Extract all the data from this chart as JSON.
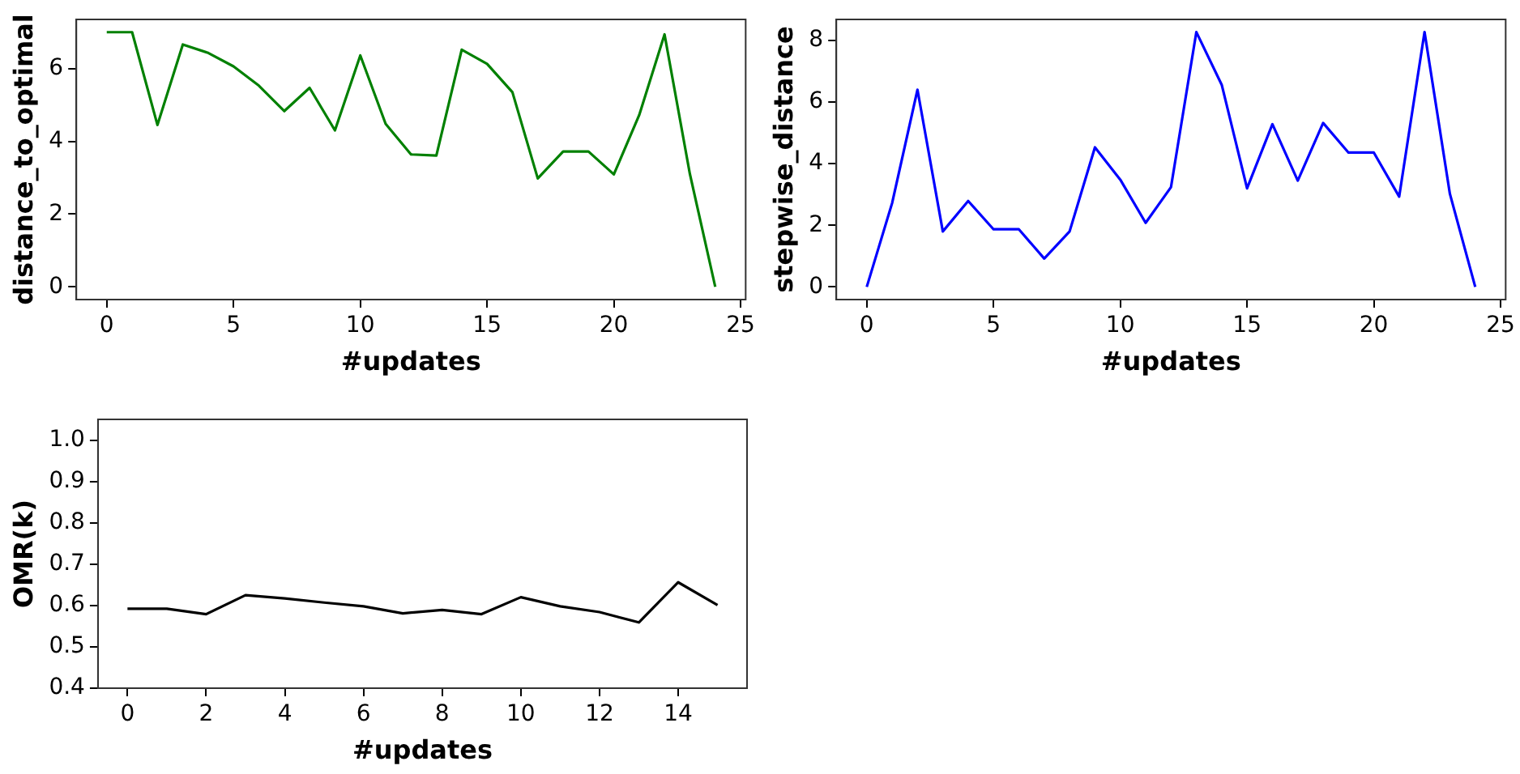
{
  "chart_data": [
    {
      "type": "line",
      "xlabel": "#updates",
      "ylabel": "distance_to_optimal",
      "color": "#008000",
      "x": [
        0,
        1,
        2,
        3,
        4,
        5,
        6,
        7,
        8,
        9,
        10,
        11,
        12,
        13,
        14,
        15,
        16,
        17,
        18,
        19,
        20,
        21,
        22,
        23,
        24
      ],
      "values": [
        7.0,
        7.0,
        4.45,
        6.66,
        6.43,
        6.06,
        5.53,
        4.83,
        5.47,
        4.3,
        6.36,
        4.48,
        3.64,
        3.61,
        6.52,
        6.13,
        5.35,
        2.98,
        3.72,
        3.72,
        3.09,
        4.72,
        6.94,
        3.1,
        0
      ],
      "xlim": [
        -1.2,
        25.2
      ],
      "xticks": [
        0,
        5,
        10,
        15,
        20,
        25
      ],
      "ylim": [
        -0.35,
        7.35
      ],
      "yticks": [
        0,
        2,
        4,
        6
      ],
      "grid": false
    },
    {
      "type": "line",
      "xlabel": "#updates",
      "ylabel": "stepwise_distance",
      "color": "#0000ff",
      "x": [
        0,
        1,
        2,
        3,
        4,
        5,
        6,
        7,
        8,
        9,
        10,
        11,
        12,
        13,
        14,
        15,
        16,
        17,
        18,
        19,
        20,
        21,
        22,
        23,
        24
      ],
      "values": [
        0,
        2.72,
        6.4,
        1.8,
        2.79,
        1.87,
        1.87,
        0.92,
        1.8,
        4.53,
        3.48,
        2.08,
        3.24,
        8.27,
        6.56,
        3.2,
        5.28,
        3.45,
        5.32,
        4.36,
        4.36,
        2.93,
        8.27,
        3.02,
        0
      ],
      "xlim": [
        -1.2,
        25.2
      ],
      "xticks": [
        0,
        5,
        10,
        15,
        20,
        25
      ],
      "ylim": [
        -0.41,
        8.68
      ],
      "yticks": [
        0,
        2,
        4,
        6,
        8
      ],
      "grid": false
    },
    {
      "type": "line",
      "xlabel": "#updates",
      "ylabel": "OMR(k)",
      "color": "#000000",
      "x": [
        0,
        1,
        2,
        3,
        4,
        5,
        6,
        7,
        8,
        9,
        10,
        11,
        12,
        13,
        14,
        15
      ],
      "values": [
        0.592,
        0.592,
        0.579,
        0.625,
        0.617,
        0.607,
        0.598,
        0.581,
        0.589,
        0.579,
        0.62,
        0.598,
        0.584,
        0.559,
        0.656,
        0.601
      ],
      "xlim": [
        -0.75,
        15.75
      ],
      "xticks": [
        0,
        2,
        4,
        6,
        8,
        10,
        12,
        14
      ],
      "ylim": [
        0.4,
        1.05
      ],
      "yticks": [
        0.4,
        0.5,
        0.6,
        0.7,
        0.8,
        0.9,
        {
          "value": 1.0,
          "label": "1.0"
        }
      ],
      "grid": false
    }
  ]
}
